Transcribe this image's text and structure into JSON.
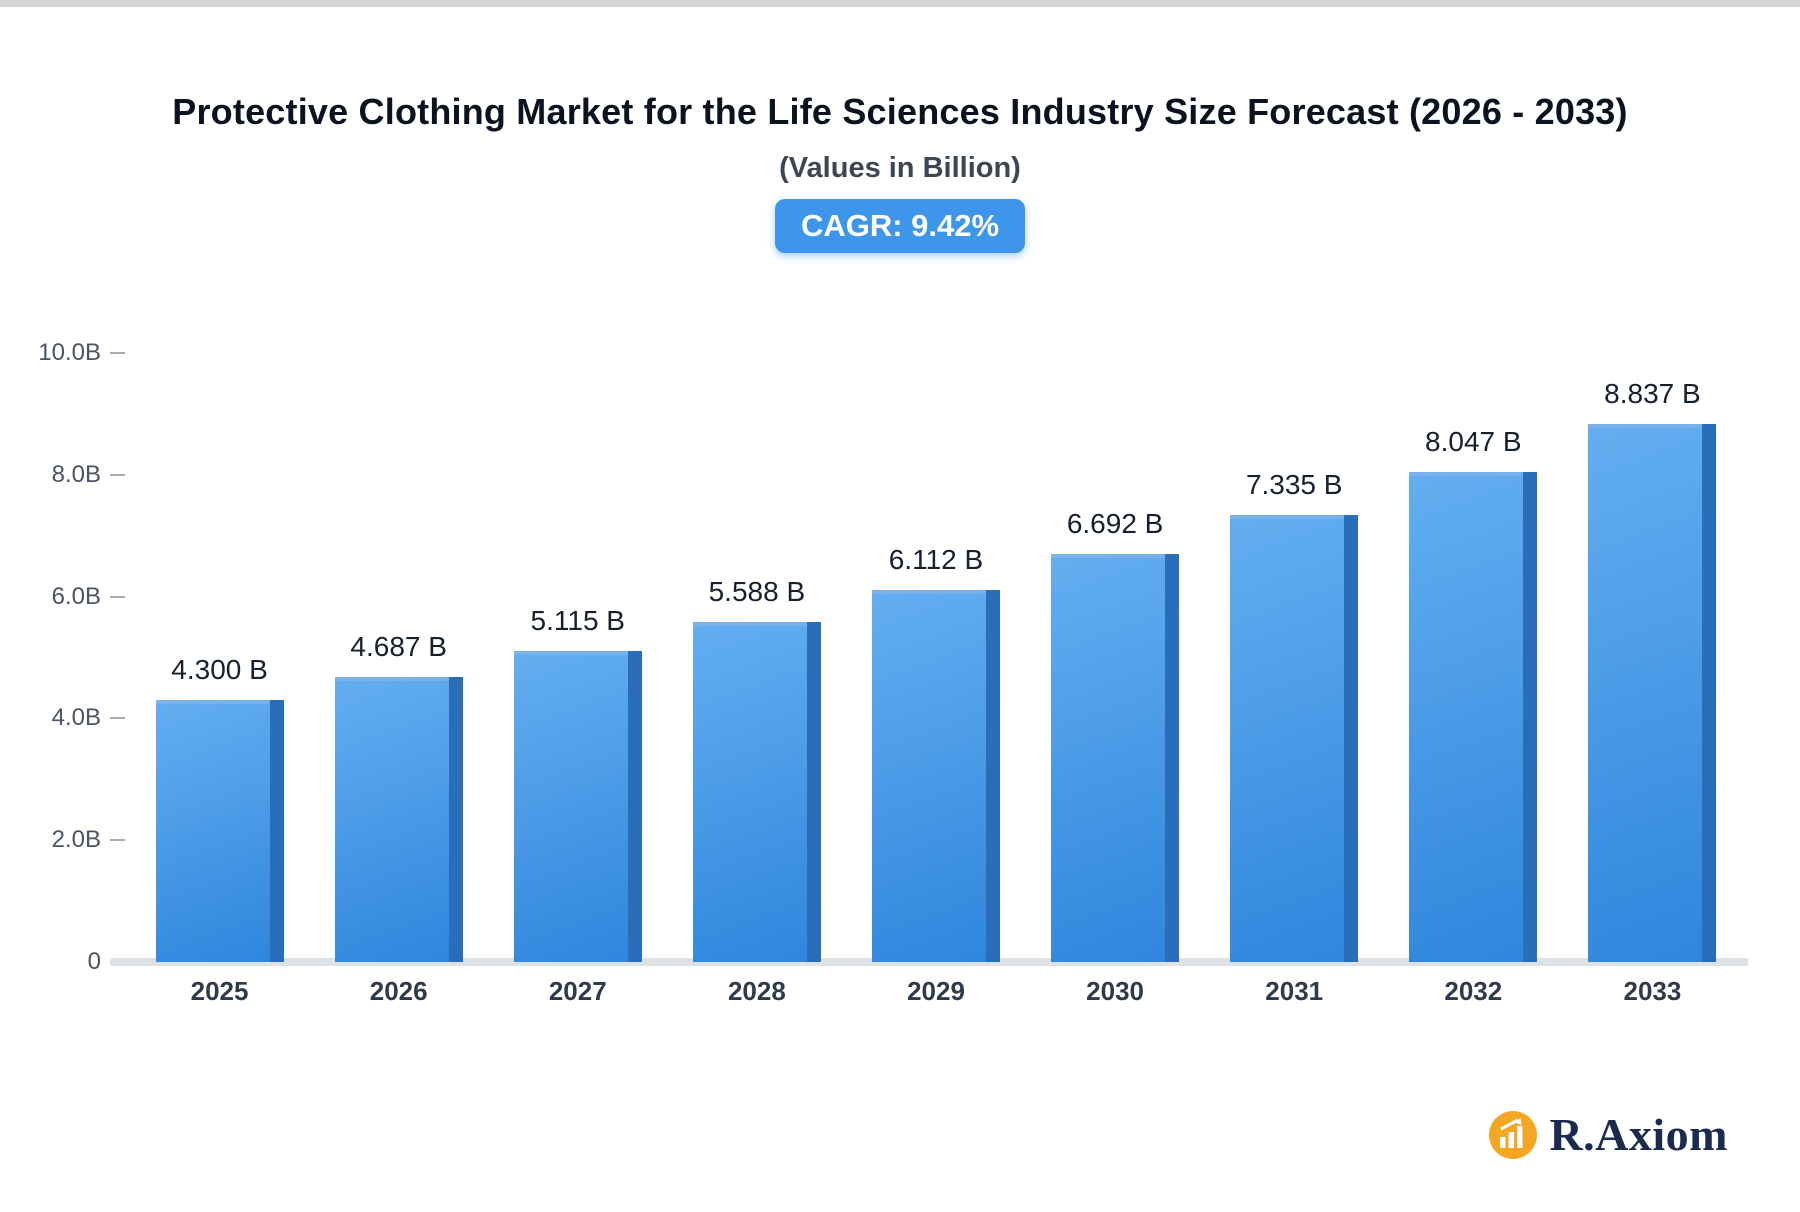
{
  "header": {
    "cagr_badge": "CAGR: 9.42%"
  },
  "chart_data": {
    "type": "bar",
    "title": "Protective Clothing Market for the Life Sciences Industry Size Forecast (2026 - 2033)",
    "subtitle": "(Values in Billion)",
    "categories": [
      "2025",
      "2026",
      "2027",
      "2028",
      "2029",
      "2030",
      "2031",
      "2032",
      "2033"
    ],
    "values": [
      4.3,
      4.687,
      5.115,
      5.588,
      6.112,
      6.692,
      7.335,
      8.047,
      8.837
    ],
    "value_labels": [
      "4.300 B",
      "4.687 B",
      "5.115 B",
      "5.588 B",
      "6.112 B",
      "6.692 B",
      "7.335 B",
      "8.047 B",
      "8.837 B"
    ],
    "xlabel": "",
    "ylabel": "",
    "ylim": [
      0,
      10
    ],
    "yticks": [
      "10.0B",
      "8.0B",
      "6.0B",
      "4.0B",
      "2.0B",
      "0"
    ],
    "grid": false,
    "legend": false
  },
  "colors": {
    "badge_bg": "#3d96ea",
    "bar_gradient_top": "#63aef0",
    "bar_gradient_bottom": "#2f86dd",
    "bar_side": "#2a6db8",
    "baseline": "#dde2e7",
    "logo_orange": "#F5A623",
    "logo_navy": "#1b2a4e"
  },
  "branding": {
    "logo_text": "R.Axiom",
    "logo_icon": "bar-chart-growth-icon"
  }
}
